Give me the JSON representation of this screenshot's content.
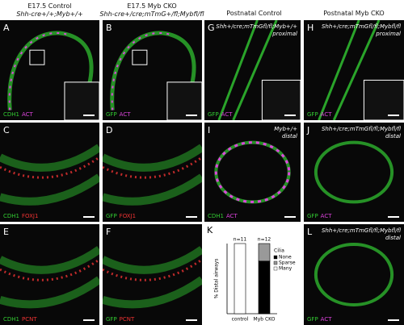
{
  "headers": [
    {
      "title": "E17.5 Control",
      "genotype": "Shh-cre+/+;Myb+/+"
    },
    {
      "title": "E17.5 Myb CKO",
      "genotype": "Shh-cre+/cre;mTmG+/fl;Mybfl/fl"
    },
    {
      "title": "Postnatal Control"
    },
    {
      "title": "Postnatal Myb CKO"
    }
  ],
  "panels": [
    {
      "letter": "A",
      "stains": [
        {
          "text": "CDH1",
          "color": "#3c3"
        },
        {
          "text": "ACT",
          "color": "#d4d"
        }
      ],
      "notes": []
    },
    {
      "letter": "B",
      "stains": [
        {
          "text": "GFP",
          "color": "#3c3"
        },
        {
          "text": "ACT",
          "color": "#d4d"
        }
      ],
      "notes": []
    },
    {
      "letter": "G",
      "stains": [
        {
          "text": "GFP",
          "color": "#3c3"
        },
        {
          "text": "ACT",
          "color": "#d4d"
        }
      ],
      "notes": [
        "Shh+/cre;mTmGfl/fl;Myb+/+",
        "proximal"
      ]
    },
    {
      "letter": "H",
      "stains": [
        {
          "text": "GFP",
          "color": "#3c3"
        },
        {
          "text": "ACT",
          "color": "#d4d"
        }
      ],
      "notes": [
        "Shh+/cre;mTmGfl/fl;Mybfl/fl",
        "proximal"
      ]
    },
    {
      "letter": "C",
      "stains": [
        {
          "text": "CDH1",
          "color": "#3c3"
        },
        {
          "text": "FOXJ1",
          "color": "#e33"
        }
      ],
      "notes": []
    },
    {
      "letter": "D",
      "stains": [
        {
          "text": "GFP",
          "color": "#3c3"
        },
        {
          "text": "FOXJ1",
          "color": "#e33"
        }
      ],
      "notes": []
    },
    {
      "letter": "I",
      "stains": [
        {
          "text": "CDH1",
          "color": "#3c3"
        },
        {
          "text": "ACT",
          "color": "#d4d"
        }
      ],
      "notes": [
        "Myb+/+",
        "distal"
      ]
    },
    {
      "letter": "J",
      "stains": [
        {
          "text": "GFP",
          "color": "#3c3"
        },
        {
          "text": "ACT",
          "color": "#d4d"
        }
      ],
      "notes": [
        "Shh+/cre;mTmGfl/fl;Mybfl/fl",
        "distal"
      ]
    },
    {
      "letter": "E",
      "stains": [
        {
          "text": "CDH1",
          "color": "#3c3"
        },
        {
          "text": "PCNT",
          "color": "#e33"
        }
      ],
      "notes": []
    },
    {
      "letter": "F",
      "stains": [
        {
          "text": "GFP",
          "color": "#3c3"
        },
        {
          "text": "PCNT",
          "color": "#e33"
        }
      ],
      "notes": []
    },
    {
      "letter": "L",
      "stains": [
        {
          "text": "GFP",
          "color": "#3c3"
        },
        {
          "text": "ACT",
          "color": "#d4d"
        }
      ],
      "notes": [
        "Shh+/cre;mTmGfl/fl;Mybfl/fl",
        "distal"
      ]
    }
  ],
  "chart_data": {
    "type": "bar",
    "letter": "K",
    "y_label": "% Distal airways",
    "categories": [
      "control",
      "Myb CKO"
    ],
    "n_labels": [
      "n=11",
      "n=12"
    ],
    "legend_title": "Cilia",
    "ylim": [
      0,
      100
    ],
    "series": [
      {
        "name": "None",
        "color": "#000000",
        "values": [
          0,
          75
        ]
      },
      {
        "name": "Sparse",
        "color": "#999999",
        "values": [
          0,
          25
        ]
      },
      {
        "name": "Many",
        "color": "#ffffff",
        "values": [
          100,
          0
        ]
      }
    ]
  }
}
